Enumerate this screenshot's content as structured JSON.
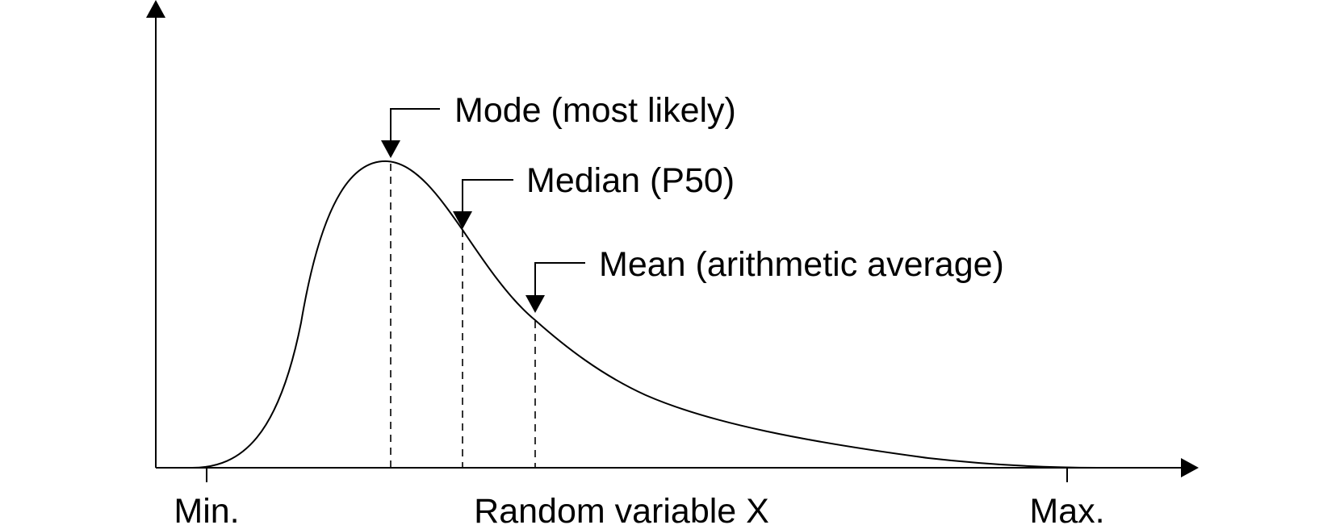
{
  "diagram": {
    "x_axis_label": "Random variable X",
    "min_label": "Min.",
    "max_label": "Max.",
    "mode_label": "Mode (most likely)",
    "median_label": "Median (P50)",
    "mean_label": "Mean (arithmetic average)",
    "curve_shape": "right-skewed probability density"
  }
}
